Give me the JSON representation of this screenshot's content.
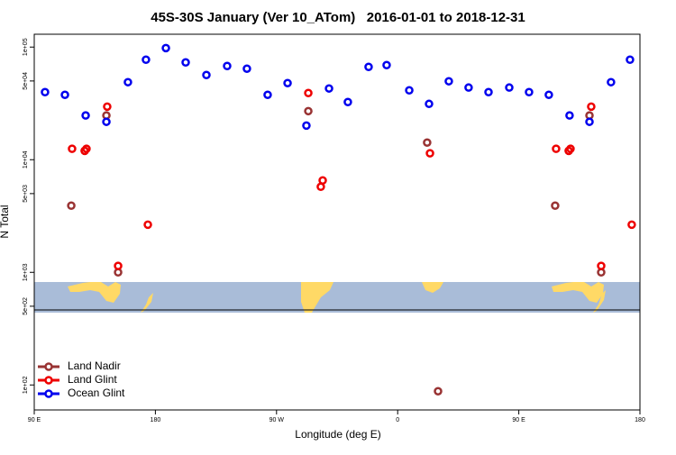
{
  "chart_data": {
    "type": "scatter",
    "title": "45S-30S January (Ver 10_ATom)   2016-01-01 to 2018-12-31",
    "x_label": "Longitude (deg E)",
    "y_label": "N Total",
    "xlim": [
      90,
      540
    ],
    "xticks": [
      {
        "value": 90,
        "label": "90 E"
      },
      {
        "value": 180,
        "label": "180"
      },
      {
        "value": 270,
        "label": "90 W"
      },
      {
        "value": 360,
        "label": "0"
      },
      {
        "value": 450,
        "label": "90 E"
      },
      {
        "value": 540,
        "label": "180"
      }
    ],
    "ylim": [
      60,
      130000
    ],
    "log_y": true,
    "yticks": [
      {
        "value": 100000,
        "label": "1e+05"
      },
      {
        "value": 50000,
        "label": "5e+04"
      },
      {
        "value": 10000,
        "label": "1e+04"
      },
      {
        "value": 5000,
        "label": "5e+03"
      },
      {
        "value": 1000,
        "label": "1e+03"
      },
      {
        "value": 500,
        "label": "5e+02"
      },
      {
        "value": 100,
        "label": "1e+02"
      }
    ],
    "legend": "bottom left",
    "series": [
      {
        "name": "Land Nadir",
        "color": "#993333",
        "x": [
          117.5,
          127.5,
          143.6,
          152.3,
          293.6,
          381.9,
          390.0,
          477.0,
          487.1,
          502.5,
          511.2
        ],
        "values": [
          3910,
          12000,
          24700,
          1000,
          27000,
          14200,
          88,
          3910,
          12000,
          24700,
          1000
        ]
      },
      {
        "name": "Land Glint",
        "color": "#ee0000",
        "x": [
          118.1,
          127.5,
          128.8,
          144.2,
          152.3,
          174.4,
          293.6,
          302.9,
          304.3,
          384.0,
          477.7,
          487.1,
          488.4,
          503.8,
          511.2,
          533.9
        ],
        "values": [
          12500,
          12000,
          12500,
          29600,
          1140,
          2650,
          39100,
          5750,
          6550,
          11400,
          12500,
          12000,
          12500,
          29600,
          1140,
          2650
        ]
      },
      {
        "name": "Ocean Glint",
        "color": "#0000ee",
        "x": [
          98.0,
          112.8,
          128.2,
          143.6,
          159.6,
          173.0,
          187.8,
          202.5,
          217.9,
          233.3,
          248.0,
          263.4,
          278.2,
          292.2,
          309.0,
          323.0,
          338.4,
          351.8,
          368.6,
          383.3,
          398.0,
          412.7,
          427.5,
          442.9,
          457.6,
          472.3,
          487.7,
          502.5,
          518.5,
          532.6
        ],
        "values": [
          39800,
          37700,
          24700,
          21700,
          48800,
          77300,
          98000,
          73100,
          56500,
          67900,
          64300,
          37700,
          47900,
          20100,
          42900,
          32500,
          66700,
          69200,
          41300,
          31300,
          49700,
          43700,
          39800,
          43700,
          39800,
          37700,
          24700,
          21700,
          48800,
          77300
        ]
      }
    ]
  }
}
